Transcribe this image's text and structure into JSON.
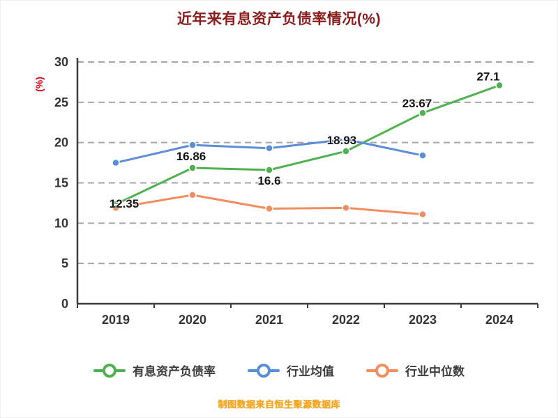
{
  "page": {
    "title": "近年来有息资产负债率情况(%)",
    "footer_note": "制图数据来自恒生聚源数据库"
  },
  "colors": {
    "title": "#8b1d1d",
    "y_axis_label": "#e60012",
    "footer_note": "#f5a623",
    "axis_line": "#3c3c3c",
    "grid_line": "#a6a6a6",
    "tick_label": "#333333",
    "data_label": "#141414",
    "legend_text": "#3d3d3d"
  },
  "chart_data": {
    "type": "line",
    "title": "近年来有息资产负债率情况(%)",
    "categories": [
      "2019",
      "2020",
      "2021",
      "2022",
      "2023",
      "2024"
    ],
    "series": [
      {
        "name": "有息资产负债率",
        "color": "#4fb14f",
        "values": [
          12.35,
          16.86,
          16.6,
          18.93,
          23.67,
          27.1
        ],
        "point_labels": [
          "12.35",
          "16.86",
          "16.6",
          "18.93",
          "23.67",
          "27.1"
        ]
      },
      {
        "name": "行业均值",
        "color": "#5b8dd9",
        "values": [
          17.5,
          19.7,
          19.3,
          20.4,
          18.4,
          null
        ],
        "point_labels": []
      },
      {
        "name": "行业中位数",
        "color": "#f28d5f",
        "values": [
          11.9,
          13.5,
          11.8,
          11.9,
          11.1,
          null
        ],
        "point_labels": []
      }
    ],
    "xlabel": "",
    "ylabel": "(%)",
    "ylim": [
      0,
      30
    ],
    "yticks": [
      0,
      5,
      10,
      15,
      20,
      25,
      30
    ],
    "grid": "horizontal-dashed",
    "legend_position": "bottom"
  }
}
